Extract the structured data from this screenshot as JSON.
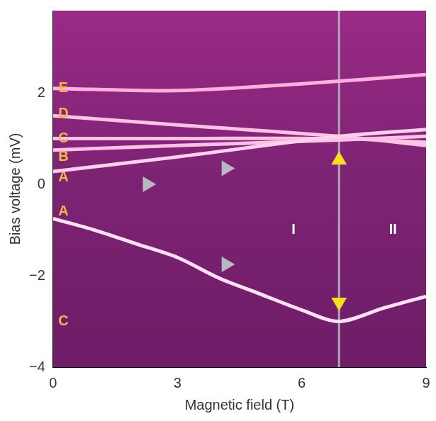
{
  "chart_data": {
    "type": "line",
    "x_label": "Magnetic field (T)",
    "y_label": "Bias voltage (mV)",
    "xlim": [
      0,
      9
    ],
    "xticks": [
      0,
      3,
      6,
      9
    ],
    "ylim": [
      -4,
      3.8
    ],
    "yticks": [
      -4,
      -2,
      0,
      2
    ],
    "grid": false,
    "series": [
      {
        "color": "#ffd0ee",
        "x": [
          0,
          3,
          6.9,
          9
        ],
        "values": [
          0.28,
          0.6,
          1.05,
          1.2
        ]
      },
      {
        "color": "#ffc0e6",
        "x": [
          0,
          3,
          6.9,
          9
        ],
        "values": [
          0.75,
          0.85,
          0.97,
          1.05
        ]
      },
      {
        "color": "#ffc0e6",
        "x": [
          0,
          3,
          6.9,
          9
        ],
        "values": [
          1.0,
          1.0,
          1.0,
          0.92
        ]
      },
      {
        "color": "#ffc0e6",
        "x": [
          0,
          3,
          6.9,
          9
        ],
        "values": [
          1.5,
          1.3,
          1.05,
          0.85
        ]
      },
      {
        "color": "#ffb0e0",
        "x": [
          0,
          3,
          6,
          9
        ],
        "values": [
          2.1,
          2.05,
          2.2,
          2.4
        ]
      },
      {
        "color": "#ffe0f4",
        "x": [
          0,
          1,
          2,
          3,
          4,
          5,
          6,
          6.9,
          8,
          9
        ],
        "values": [
          -0.75,
          -1.0,
          -1.3,
          -1.6,
          -2.05,
          -2.4,
          -2.75,
          -3.0,
          -2.7,
          -2.45
        ]
      }
    ],
    "vertical_line": {
      "x": 6.9,
      "color": "#b0a6b8"
    },
    "annotations": [
      {
        "text": "E",
        "x": 0.25,
        "y": 2.1,
        "color": "#f6b545"
      },
      {
        "text": "D",
        "x": 0.25,
        "y": 1.55,
        "color": "#f6b545"
      },
      {
        "text": "C",
        "x": 0.25,
        "y": 1.0,
        "color": "#f6b545"
      },
      {
        "text": "B",
        "x": 0.25,
        "y": 0.6,
        "color": "#f6b545"
      },
      {
        "text": "A",
        "x": 0.25,
        "y": 0.15,
        "color": "#f6b545"
      },
      {
        "text": "A",
        "x": 0.25,
        "y": -0.6,
        "color": "#f6b545"
      },
      {
        "text": "C",
        "x": 0.25,
        "y": -3.0,
        "color": "#f6b545"
      },
      {
        "text": "I",
        "x": 5.8,
        "y": -1.0,
        "color": "#ffffff"
      },
      {
        "text": "II",
        "x": 8.2,
        "y": -1.0,
        "color": "#ffffff"
      }
    ],
    "arrows": [
      {
        "x": 2.3,
        "y": 0.0,
        "color": "#b8b8c0",
        "direction": "right"
      },
      {
        "x": 4.2,
        "y": 0.35,
        "color": "#b8b8c0",
        "direction": "right"
      },
      {
        "x": 4.2,
        "y": -1.75,
        "color": "#b8b8c0",
        "direction": "right"
      },
      {
        "x": 6.9,
        "y": 0.55,
        "color": "#f4e01c",
        "direction": "up"
      },
      {
        "x": 6.9,
        "y": -2.6,
        "color": "#f4e01c",
        "direction": "down"
      }
    ]
  }
}
